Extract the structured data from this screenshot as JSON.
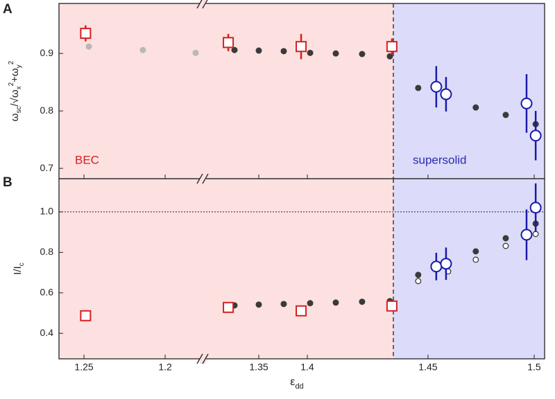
{
  "chart_data": {
    "type": "scatter",
    "xlabel": {
      "main": "ε",
      "sub": "dd"
    },
    "segments": [
      {
        "xlim": [
          1.2654,
          1.1778
        ],
        "xticks": [
          1.25,
          1.2
        ],
        "background": "#fde0e0"
      },
      {
        "xlim": [
          1.2964,
          1.4886
        ],
        "xticks": [
          1.35,
          1.4
        ],
        "background": "#fde0e0"
      },
      {
        "xlim": [
          1.4337,
          1.5049
        ],
        "xticks": [
          1.45,
          1.5
        ],
        "background": "#dcdcfa"
      }
    ],
    "panels": [
      {
        "label": "A",
        "ylabel": [
          {
            "t": "ω"
          },
          {
            "t": "sc",
            "sub": true
          },
          {
            "t": "/√"
          },
          {
            "t": "ω"
          },
          {
            "t": "x",
            "sub": true
          },
          {
            "t": "2",
            "sup": true
          },
          {
            "t": "+ω"
          },
          {
            "t": "y",
            "sub": true
          },
          {
            "t": "2",
            "sup": true
          }
        ],
        "ylim": [
          0.682,
          0.987
        ],
        "yticks": [
          0.7,
          0.8,
          0.9
        ],
        "annotations": [
          {
            "text": "BEC",
            "color": "#d42020",
            "segment": 0
          },
          {
            "text": "supersolid",
            "color": "#2a2ab0",
            "segment": 2
          }
        ],
        "series": [
          {
            "segment": 0,
            "marker": "dot",
            "color": "#b8b8b8",
            "x": [
              1.247,
              1.2137,
              1.1812
            ],
            "y": [
              0.912,
              0.906,
              0.901
            ]
          },
          {
            "segment": 0,
            "marker": "square",
            "color": "#d42020",
            "x": [
              1.249
            ],
            "y": [
              0.935
            ],
            "yerr": [
              0.014
            ]
          },
          {
            "segment": 1,
            "marker": "dot",
            "color": "#3a3a3a",
            "x": [
              1.325,
              1.35,
              1.3757,
              1.4029,
              1.4293,
              1.4564,
              1.485
            ],
            "y": [
              0.906,
              0.905,
              0.904,
              0.901,
              0.9,
              0.899,
              0.895
            ]
          },
          {
            "segment": 1,
            "marker": "square",
            "color": "#d42020",
            "x": [
              1.3186,
              1.3936,
              1.4871
            ],
            "y": [
              0.919,
              0.912,
              0.912
            ],
            "yerr": [
              0.015,
              0.022,
              0.014
            ]
          },
          {
            "segment": 2,
            "marker": "dot",
            "color": "#3a3a3a",
            "x": [
              1.4454,
              1.4725,
              1.4866,
              1.5007
            ],
            "y": [
              0.84,
              0.806,
              0.793,
              0.777
            ]
          },
          {
            "segment": 2,
            "marker": "circle",
            "color": "#1a1aa8",
            "x": [
              1.4539,
              1.4585,
              1.4964,
              1.5007
            ],
            "y": [
              0.842,
              0.829,
              0.813,
              0.757
            ],
            "yerr": [
              0.036,
              0.03,
              0.051,
              0.043
            ]
          }
        ]
      },
      {
        "label": "B",
        "ylabel": [
          {
            "t": "I/I"
          },
          {
            "t": "c",
            "sub": true
          }
        ],
        "ylim": [
          0.274,
          1.164
        ],
        "yticks": [
          0.4,
          0.6,
          0.8,
          {
            "value": 1,
            "label": "1.0"
          }
        ],
        "refline": 1,
        "series": [
          {
            "segment": 0,
            "marker": "square",
            "color": "#d42020",
            "x": [
              1.249
            ],
            "y": [
              0.487
            ],
            "yerr": [
              0.01
            ]
          },
          {
            "segment": 1,
            "marker": "dot",
            "color": "#3a3a3a",
            "x": [
              1.325,
              1.35,
              1.3757,
              1.4029,
              1.4293,
              1.4564,
              1.485
            ],
            "y": [
              0.538,
              0.542,
              0.545,
              0.549,
              0.552,
              0.556,
              0.559
            ]
          },
          {
            "segment": 1,
            "marker": "square",
            "color": "#d42020",
            "x": [
              1.3186,
              1.3936,
              1.4871
            ],
            "y": [
              0.528,
              0.511,
              0.535
            ],
            "yerr": [
              0.01,
              0.01,
              0.015
            ]
          },
          {
            "segment": 2,
            "marker": "dot",
            "color": "#3a3a3a",
            "x": [
              1.4454,
              1.4725,
              1.4866,
              1.5007
            ],
            "y": [
              0.689,
              0.805,
              0.87,
              0.942
            ]
          },
          {
            "segment": 2,
            "marker": "open",
            "color": "#3a3a3a",
            "x": [
              1.4454,
              1.4595,
              1.4725,
              1.4866,
              1.5007
            ],
            "y": [
              0.658,
              0.706,
              0.764,
              0.832,
              0.891
            ]
          },
          {
            "segment": 2,
            "marker": "circle",
            "color": "#1a1aa8",
            "x": [
              1.4539,
              1.4585,
              1.4964,
              1.5007
            ],
            "y": [
              0.73,
              0.744,
              0.887,
              1.021
            ],
            "yerr": [
              0.068,
              0.08,
              0.125,
              0.12
            ]
          }
        ]
      }
    ]
  }
}
